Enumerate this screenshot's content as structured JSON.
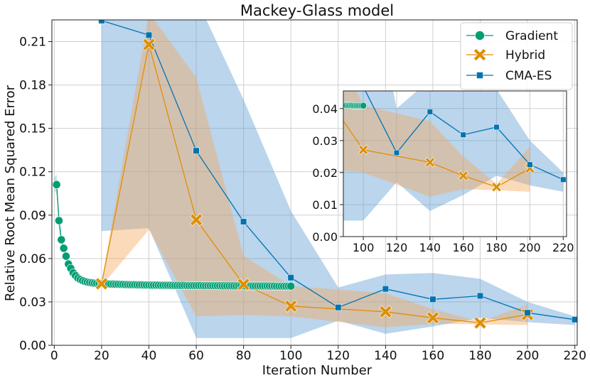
{
  "chart_data": {
    "type": "line",
    "title": "Mackey-Glass model",
    "xlabel": "Iteration Number",
    "ylabel": "Relative Root Mean Squared Error",
    "xlim": [
      -1,
      221
    ],
    "ylim": [
      0.0,
      0.225
    ],
    "xticks": [
      "0",
      "20",
      "40",
      "60",
      "80",
      "100",
      "120",
      "140",
      "160",
      "180",
      "200",
      "220"
    ],
    "yticks": [
      "0.00",
      "0.03",
      "0.06",
      "0.09",
      "0.12",
      "0.15",
      "0.18",
      "0.21"
    ],
    "grid": true,
    "legend_position": "top-right",
    "series": [
      {
        "name": "Gradient",
        "color": "#029e73",
        "marker": "circle",
        "x": [
          1,
          2,
          3,
          4,
          5,
          6,
          7,
          8,
          9,
          10,
          11,
          12,
          13,
          14,
          15,
          16,
          17,
          18,
          19,
          20,
          21,
          22,
          23,
          24,
          25,
          26,
          27,
          28,
          29,
          30,
          31,
          32,
          33,
          34,
          35,
          36,
          37,
          38,
          39,
          40,
          41,
          42,
          43,
          44,
          45,
          46,
          47,
          48,
          49,
          50,
          51,
          52,
          53,
          54,
          55,
          56,
          57,
          58,
          59,
          60,
          61,
          62,
          63,
          64,
          65,
          66,
          67,
          68,
          69,
          70,
          71,
          72,
          73,
          74,
          75,
          76,
          77,
          78,
          79,
          80,
          81,
          82,
          83,
          84,
          85,
          86,
          87,
          88,
          89,
          90,
          91,
          92,
          93,
          94,
          95,
          96,
          97,
          98,
          99,
          100
        ],
        "y": [
          0.1111,
          0.0862,
          0.073,
          0.0671,
          0.0616,
          0.0562,
          0.0532,
          0.0501,
          0.0482,
          0.0465,
          0.0455,
          0.0447,
          0.0441,
          0.0437,
          0.0434,
          0.0432,
          0.043,
          0.0429,
          0.0428,
          0.0427,
          0.0426,
          0.0425,
          0.0424,
          0.0423,
          0.0423,
          0.0422,
          0.0422,
          0.0421,
          0.0421,
          0.042,
          0.042,
          0.0419,
          0.0419,
          0.0419,
          0.0418,
          0.0418,
          0.0418,
          0.0417,
          0.0417,
          0.0417,
          0.0416,
          0.0416,
          0.0416,
          0.0416,
          0.0415,
          0.0415,
          0.0415,
          0.0415,
          0.0415,
          0.0414,
          0.0414,
          0.0414,
          0.0414,
          0.0414,
          0.0414,
          0.0413,
          0.0413,
          0.0413,
          0.0413,
          0.0413,
          0.0413,
          0.0413,
          0.0412,
          0.0412,
          0.0412,
          0.0412,
          0.0412,
          0.0412,
          0.0412,
          0.0412,
          0.0411,
          0.0411,
          0.0411,
          0.0411,
          0.0411,
          0.0411,
          0.0411,
          0.0411,
          0.0411,
          0.0411,
          0.041,
          0.041,
          0.041,
          0.041,
          0.041,
          0.041,
          0.041,
          0.041,
          0.041,
          0.041,
          0.041,
          0.041,
          0.041,
          0.0409,
          0.0409,
          0.0409,
          0.0409,
          0.0409,
          0.0409,
          0.0409
        ],
        "band_x": [
          0,
          1,
          2,
          3,
          4,
          5,
          8,
          12,
          20,
          100
        ],
        "band_lower": [
          0.108,
          0.104,
          0.08,
          0.069,
          0.063,
          0.058,
          0.049,
          0.044,
          0.042,
          0.04
        ],
        "band_upper": [
          0.116,
          0.118,
          0.092,
          0.077,
          0.07,
          0.064,
          0.052,
          0.046,
          0.043,
          0.042
        ]
      },
      {
        "name": "Hybrid",
        "color": "#de8f05",
        "band_color": "#f5a85b",
        "marker": "x",
        "x": [
          20,
          40,
          60,
          80,
          100,
          140,
          160,
          180,
          200
        ],
        "y": [
          0.0425,
          0.208,
          0.0868,
          0.0421,
          0.0271,
          0.0232,
          0.019,
          0.0155,
          0.0213
        ],
        "band_lower": [
          0.041,
          0.08,
          0.02,
          0.021,
          0.02,
          0.0125,
          0.0148,
          0.0145,
          0.014
        ],
        "band_upper": [
          0.044,
          0.23,
          0.185,
          0.062,
          0.041,
          0.036,
          0.025,
          0.0165,
          0.028
        ]
      },
      {
        "name": "CMA-ES",
        "color": "#0173b2",
        "band_color": "#5b9bd2",
        "marker": "square",
        "x": [
          20,
          40,
          60,
          80,
          100,
          120,
          140,
          160,
          180,
          200,
          220
        ],
        "y": [
          0.2245,
          0.2145,
          0.1345,
          0.0855,
          0.0468,
          0.0262,
          0.039,
          0.0318,
          0.0342,
          0.0225,
          0.0178
        ],
        "band_lower": [
          0.079,
          0.081,
          0.005,
          0.005,
          0.005,
          0.017,
          0.008,
          0.013,
          0.019,
          0.016,
          0.014
        ],
        "band_upper": [
          0.25,
          0.26,
          0.24,
          0.17,
          0.093,
          0.04,
          0.049,
          0.05,
          0.046,
          0.03,
          0.02
        ]
      }
    ],
    "inset": {
      "xlim": [
        88,
        222
      ],
      "ylim": [
        0.0,
        0.0455
      ],
      "xticks": [
        "100",
        "120",
        "140",
        "160",
        "180",
        "200",
        "220"
      ],
      "yticks": [
        "0.00",
        "0.01",
        "0.02",
        "0.03",
        "0.04"
      ]
    }
  }
}
